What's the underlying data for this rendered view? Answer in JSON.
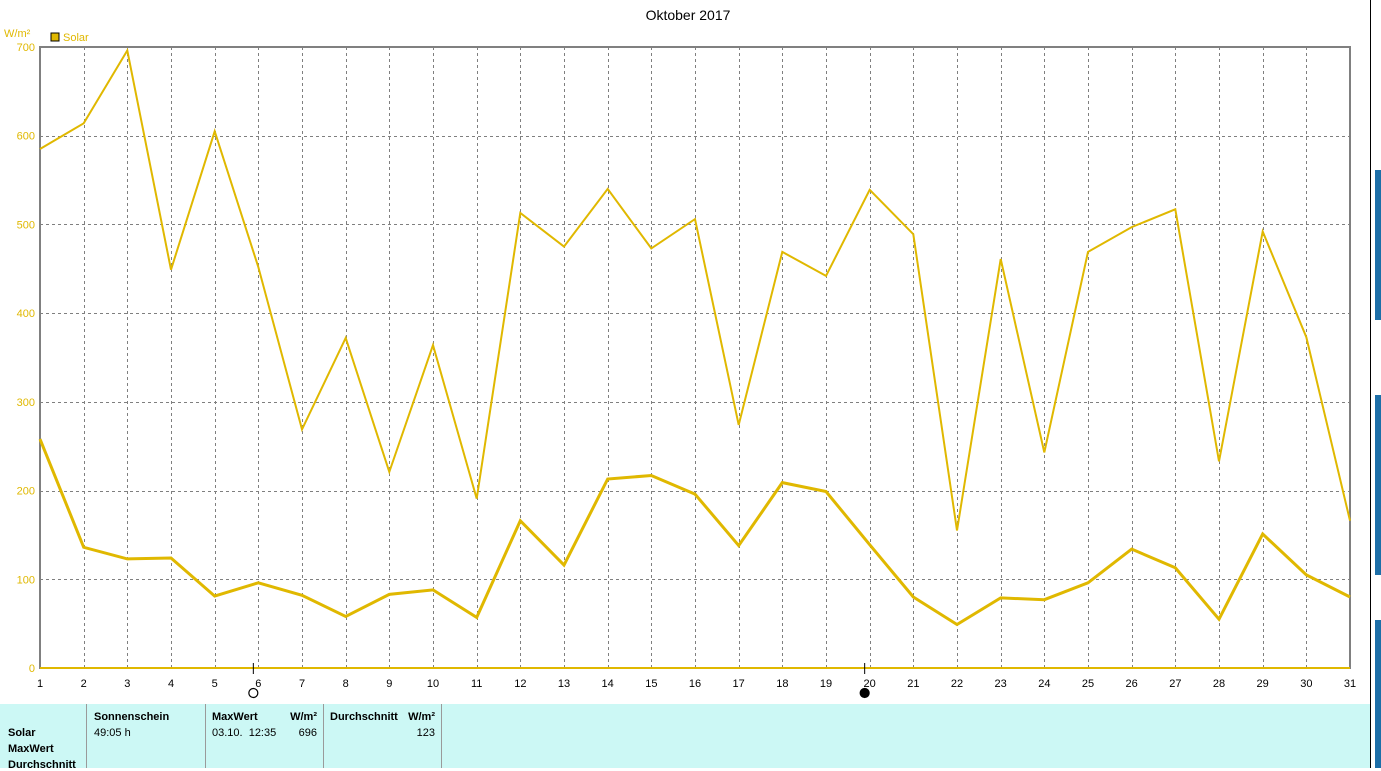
{
  "chart_data": {
    "type": "line",
    "title": "Oktober 2017",
    "ylabel": "W/m²",
    "legend": "Solar",
    "legend_placement": "top-left",
    "grid": true,
    "ylim": [
      0,
      700
    ],
    "y_ticks": [
      "0",
      "100",
      "200",
      "300",
      "400",
      "500",
      "600",
      "700"
    ],
    "x": [
      "1",
      "2",
      "3",
      "4",
      "5",
      "6",
      "7",
      "8",
      "9",
      "10",
      "11",
      "12",
      "13",
      "14",
      "15",
      "16",
      "17",
      "18",
      "19",
      "20",
      "21",
      "22",
      "23",
      "24",
      "25",
      "26",
      "27",
      "28",
      "29",
      "30",
      "31"
    ],
    "series": [
      {
        "name": "Solar",
        "role": "max",
        "values": [
          585,
          614,
          696,
          449,
          605,
          452,
          269,
          372,
          221,
          364,
          191,
          513,
          475,
          540,
          473,
          506,
          274,
          469,
          442,
          539,
          489,
          155,
          461,
          243,
          469,
          497,
          517,
          233,
          492,
          373,
          166
        ]
      },
      {
        "name": "Solar",
        "role": "average",
        "values": [
          258,
          136,
          123,
          124,
          81,
          96,
          82,
          58,
          83,
          88,
          57,
          166,
          116,
          213,
          217,
          196,
          138,
          209,
          199,
          139,
          80,
          49,
          79,
          77,
          96,
          134,
          113,
          55,
          151,
          105,
          80
        ]
      }
    ],
    "moon_markers": [
      {
        "day": "6",
        "phase": "full-moon"
      },
      {
        "day": "20",
        "phase": "new-moon"
      }
    ],
    "colors": {
      "series": "#e0b800",
      "axis": "#e0b800",
      "grid": "#7f7f7f",
      "frame": "#808080"
    }
  },
  "stats": {
    "rows": {
      "solar": "Solar",
      "maxwert": "MaxWert",
      "durchschnitt": "Durchschnitt"
    },
    "sonnenschein": {
      "header": "Sonnenschein",
      "value": "49:05 h"
    },
    "maxwert": {
      "header": "MaxWert",
      "unit": "W/m²",
      "date": "03.10.  12:35",
      "value": "696"
    },
    "durchschnitt": {
      "header": "Durchschnitt",
      "unit": "W/m²",
      "value": "123"
    }
  }
}
